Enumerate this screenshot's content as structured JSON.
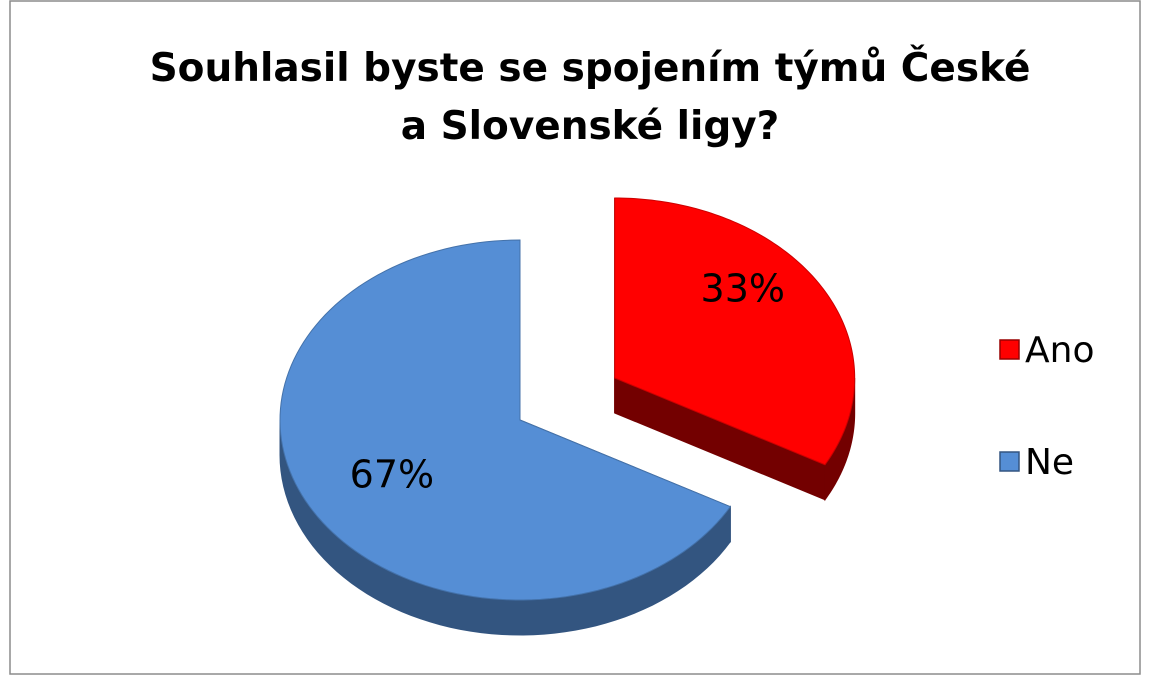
{
  "chart_data": {
    "type": "pie",
    "title": "Souhlasil byste se spojením týmů České a Slovenské ligy?",
    "categories": [
      "Ano",
      "Ne"
    ],
    "values": [
      33,
      67
    ],
    "value_labels": [
      "33%",
      "67%"
    ],
    "colors": [
      "#ff0000",
      "#558ed5"
    ],
    "legend": "right"
  }
}
